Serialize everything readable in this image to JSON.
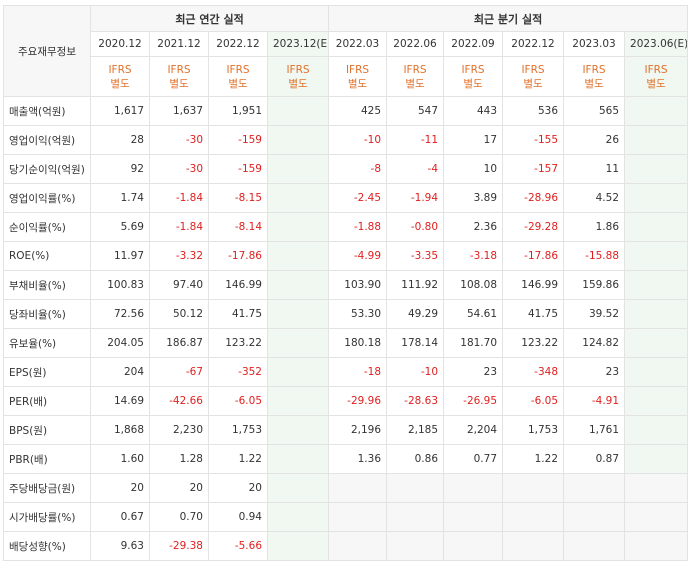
{
  "header": {
    "item_label": "주요재무정보",
    "annual_title": "최근 연간 실적",
    "quarter_title": "최근 분기 실적",
    "annual_periods": [
      "2020.12",
      "2021.12",
      "2022.12",
      "2023.12(E)"
    ],
    "quarter_periods": [
      "2022.03",
      "2022.06",
      "2022.09",
      "2022.12",
      "2023.03",
      "2023.06(E)"
    ],
    "ifrs_line1": "IFRS",
    "ifrs_line2": "별도"
  },
  "rows": [
    {
      "label": "매출액(억원)",
      "annual": [
        "1,617",
        "1,637",
        "1,951",
        ""
      ],
      "quarter": [
        "425",
        "547",
        "443",
        "536",
        "565",
        ""
      ]
    },
    {
      "label": "영업이익(억원)",
      "annual": [
        "28",
        "-30",
        "-159",
        ""
      ],
      "quarter": [
        "-10",
        "-11",
        "17",
        "-155",
        "26",
        ""
      ]
    },
    {
      "label": "당기순이익(억원)",
      "annual": [
        "92",
        "-30",
        "-159",
        ""
      ],
      "quarter": [
        "-8",
        "-4",
        "10",
        "-157",
        "11",
        ""
      ]
    },
    {
      "label": "영업이익률(%)",
      "annual": [
        "1.74",
        "-1.84",
        "-8.15",
        ""
      ],
      "quarter": [
        "-2.45",
        "-1.94",
        "3.89",
        "-28.96",
        "4.52",
        ""
      ]
    },
    {
      "label": "순이익률(%)",
      "annual": [
        "5.69",
        "-1.84",
        "-8.14",
        ""
      ],
      "quarter": [
        "-1.88",
        "-0.80",
        "2.36",
        "-29.28",
        "1.86",
        ""
      ]
    },
    {
      "label": "ROE(%)",
      "annual": [
        "11.97",
        "-3.32",
        "-17.86",
        ""
      ],
      "quarter": [
        "-4.99",
        "-3.35",
        "-3.18",
        "-17.86",
        "-15.88",
        ""
      ]
    },
    {
      "label": "부채비율(%)",
      "annual": [
        "100.83",
        "97.40",
        "146.99",
        ""
      ],
      "quarter": [
        "103.90",
        "111.92",
        "108.08",
        "146.99",
        "159.86",
        ""
      ]
    },
    {
      "label": "당좌비율(%)",
      "annual": [
        "72.56",
        "50.12",
        "41.75",
        ""
      ],
      "quarter": [
        "53.30",
        "49.29",
        "54.61",
        "41.75",
        "39.52",
        ""
      ]
    },
    {
      "label": "유보율(%)",
      "annual": [
        "204.05",
        "186.87",
        "123.22",
        ""
      ],
      "quarter": [
        "180.18",
        "178.14",
        "181.70",
        "123.22",
        "124.82",
        ""
      ]
    },
    {
      "label": "EPS(원)",
      "annual": [
        "204",
        "-67",
        "-352",
        ""
      ],
      "quarter": [
        "-18",
        "-10",
        "23",
        "-348",
        "23",
        ""
      ]
    },
    {
      "label": "PER(배)",
      "annual": [
        "14.69",
        "-42.66",
        "-6.05",
        ""
      ],
      "quarter": [
        "-29.96",
        "-28.63",
        "-26.95",
        "-6.05",
        "-4.91",
        ""
      ]
    },
    {
      "label": "BPS(원)",
      "annual": [
        "1,868",
        "2,230",
        "1,753",
        ""
      ],
      "quarter": [
        "2,196",
        "2,185",
        "2,204",
        "1,753",
        "1,761",
        ""
      ]
    },
    {
      "label": "PBR(배)",
      "annual": [
        "1.60",
        "1.28",
        "1.22",
        ""
      ],
      "quarter": [
        "1.36",
        "0.86",
        "0.77",
        "1.22",
        "0.87",
        ""
      ]
    },
    {
      "label": "주당배당금(원)",
      "annual": [
        "20",
        "20",
        "20",
        ""
      ],
      "quarter": null
    },
    {
      "label": "시가배당률(%)",
      "annual": [
        "0.67",
        "0.70",
        "0.94",
        ""
      ],
      "quarter": null
    },
    {
      "label": "배당성향(%)",
      "annual": [
        "9.63",
        "-29.38",
        "-5.66",
        ""
      ],
      "quarter": null
    }
  ],
  "colors": {
    "negative": "#e02020",
    "ifrs": "#e0712b",
    "estimate_bg": "#f1f8f1"
  }
}
